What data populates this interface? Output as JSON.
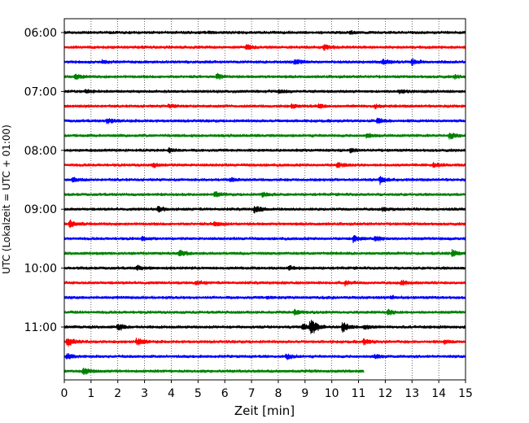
{
  "chart_data": {
    "type": "line",
    "title": "",
    "xlabel": "Zeit  [min]",
    "ylabel": "UTC (Lokalzeit = UTC + 01:00)",
    "xlim": [
      0,
      15
    ],
    "x_ticks": [
      "0",
      "1",
      "2",
      "3",
      "4",
      "5",
      "6",
      "7",
      "8",
      "9",
      "10",
      "11",
      "12",
      "13",
      "14",
      "15"
    ],
    "y_tick_labels": [
      "06:00",
      "07:00",
      "08:00",
      "09:00",
      "10:00",
      "11:00"
    ],
    "row_interval_minutes": 15,
    "grid": "vertical dotted at each minute",
    "series_colors": [
      "#000000",
      "#ff0000",
      "#0000ff",
      "#008000"
    ],
    "rows": [
      {
        "start": "06:00",
        "end_min": 15,
        "events": [
          [
            5.4,
            1.4
          ],
          [
            10.7,
            1.5
          ]
        ]
      },
      {
        "start": "06:15",
        "end_min": 15,
        "events": [
          [
            6.8,
            3
          ],
          [
            9.7,
            3
          ]
        ]
      },
      {
        "start": "06:30",
        "end_min": 15,
        "events": [
          [
            1.4,
            2
          ],
          [
            8.6,
            4
          ],
          [
            11.9,
            3
          ],
          [
            13.0,
            4
          ]
        ]
      },
      {
        "start": "06:45",
        "end_min": 15,
        "events": [
          [
            0.4,
            3
          ],
          [
            5.7,
            3
          ],
          [
            14.6,
            2
          ]
        ]
      },
      {
        "start": "07:00",
        "end_min": 15,
        "events": [
          [
            0.8,
            2
          ],
          [
            8.0,
            2
          ],
          [
            12.5,
            2
          ]
        ]
      },
      {
        "start": "07:15",
        "end_min": 15,
        "events": [
          [
            3.9,
            2
          ],
          [
            8.5,
            2.5
          ],
          [
            9.5,
            2.5
          ],
          [
            11.6,
            2
          ]
        ]
      },
      {
        "start": "07:30",
        "end_min": 15,
        "events": [
          [
            1.6,
            3.5
          ],
          [
            11.7,
            3.5
          ]
        ]
      },
      {
        "start": "07:45",
        "end_min": 15,
        "events": [
          [
            11.3,
            2.5
          ],
          [
            14.4,
            3.5
          ]
        ]
      },
      {
        "start": "08:00",
        "end_min": 15,
        "events": [
          [
            3.9,
            3
          ],
          [
            10.7,
            2
          ]
        ]
      },
      {
        "start": "08:15",
        "end_min": 15,
        "events": [
          [
            3.3,
            2.5
          ],
          [
            10.2,
            3
          ],
          [
            13.8,
            2.5
          ]
        ]
      },
      {
        "start": "08:30",
        "end_min": 15,
        "events": [
          [
            0.3,
            2.5
          ],
          [
            6.2,
            2.5
          ],
          [
            11.8,
            4.5
          ]
        ]
      },
      {
        "start": "08:45",
        "end_min": 15,
        "events": [
          [
            5.6,
            4
          ],
          [
            7.4,
            2.5
          ]
        ]
      },
      {
        "start": "09:00",
        "end_min": 15,
        "events": [
          [
            3.5,
            3.5
          ],
          [
            7.1,
            4.5
          ],
          [
            11.9,
            2
          ]
        ]
      },
      {
        "start": "09:15",
        "end_min": 15,
        "events": [
          [
            0.2,
            5
          ],
          [
            5.6,
            3
          ]
        ]
      },
      {
        "start": "09:30",
        "end_min": 15,
        "events": [
          [
            2.9,
            2
          ],
          [
            10.8,
            4
          ],
          [
            11.6,
            4
          ]
        ]
      },
      {
        "start": "09:45",
        "end_min": 15,
        "events": [
          [
            4.3,
            4
          ],
          [
            14.5,
            4
          ]
        ]
      },
      {
        "start": "10:00",
        "end_min": 15,
        "events": [
          [
            2.7,
            3
          ],
          [
            8.4,
            2.5
          ]
        ]
      },
      {
        "start": "10:15",
        "end_min": 15,
        "events": [
          [
            4.9,
            2.5
          ],
          [
            10.5,
            2.5
          ],
          [
            12.6,
            3
          ]
        ]
      },
      {
        "start": "10:30",
        "end_min": 15,
        "events": [
          [
            7.6,
            1.5
          ],
          [
            12.2,
            1.5
          ]
        ]
      },
      {
        "start": "10:45",
        "end_min": 15,
        "events": [
          [
            8.6,
            3
          ],
          [
            12.1,
            3
          ]
        ]
      },
      {
        "start": "11:00",
        "end_min": 15,
        "events": [
          [
            2.0,
            4
          ],
          [
            8.9,
            4
          ],
          [
            9.2,
            11
          ],
          [
            10.4,
            6
          ],
          [
            11.2,
            3
          ]
        ]
      },
      {
        "start": "11:15",
        "end_min": 15,
        "events": [
          [
            0.1,
            6
          ],
          [
            2.7,
            5
          ],
          [
            11.2,
            3
          ],
          [
            14.2,
            2
          ]
        ]
      },
      {
        "start": "11:30",
        "end_min": 15,
        "events": [
          [
            0.1,
            3.5
          ],
          [
            8.3,
            3
          ],
          [
            11.6,
            2.5
          ]
        ]
      },
      {
        "start": "11:45",
        "end_min": 11.2,
        "events": [
          [
            0.7,
            4.5
          ]
        ]
      }
    ]
  }
}
